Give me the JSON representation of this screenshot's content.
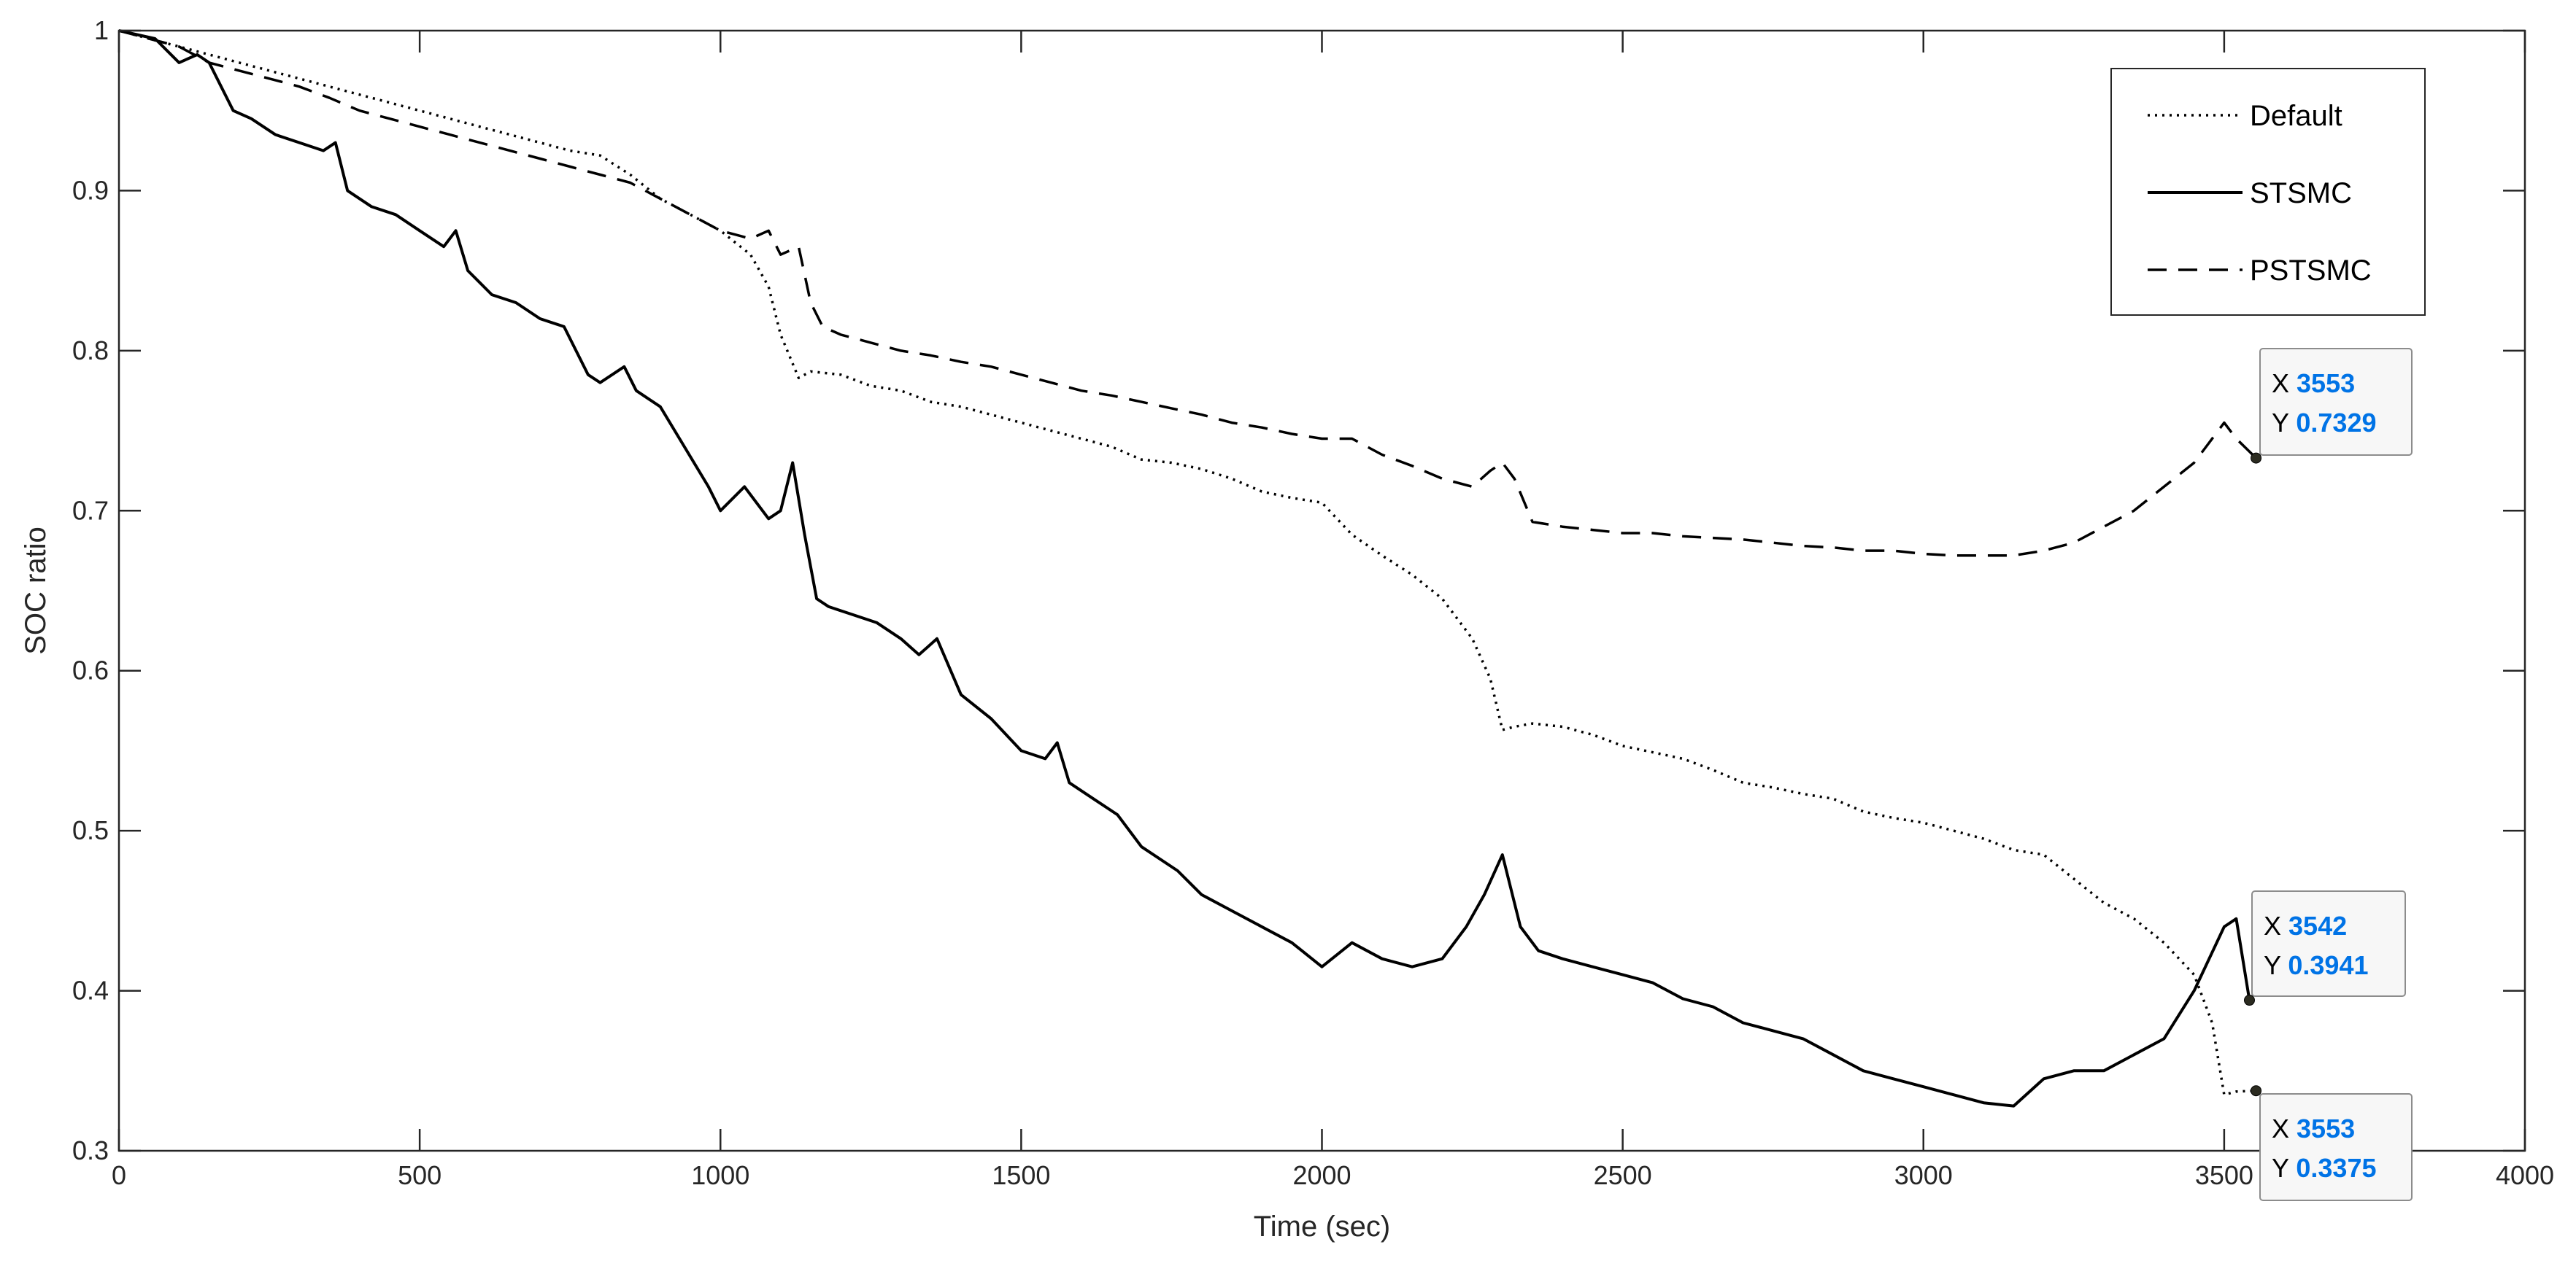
{
  "chart_data": {
    "type": "line",
    "title": "",
    "xlabel": "Time (sec)",
    "ylabel": "SOC ratio",
    "xlim": [
      0,
      4000
    ],
    "ylim": [
      0.3,
      1
    ],
    "xticks": [
      0,
      500,
      1000,
      1500,
      2000,
      2500,
      3000,
      3500,
      4000
    ],
    "yticks": [
      0.3,
      0.4,
      0.5,
      0.6,
      0.7,
      0.8,
      0.9,
      1
    ],
    "xtick_labels": [
      "0",
      "500",
      "1000",
      "1500",
      "2000",
      "2500",
      "3000",
      "3500",
      "4000"
    ],
    "ytick_labels": [
      "0.3",
      "0.4",
      "0.5",
      "0.6",
      "0.7",
      "0.8",
      "0.9",
      "1"
    ],
    "grid": false,
    "legend_position": "top-right",
    "series": [
      {
        "name": "Default",
        "style": "dotted",
        "color": "#000000",
        "x": [
          0,
          50,
          100,
          150,
          200,
          250,
          300,
          350,
          400,
          450,
          500,
          550,
          600,
          650,
          700,
          750,
          800,
          850,
          900,
          950,
          1000,
          1050,
          1080,
          1100,
          1130,
          1150,
          1200,
          1250,
          1300,
          1350,
          1400,
          1450,
          1500,
          1550,
          1600,
          1650,
          1700,
          1750,
          1800,
          1850,
          1900,
          1950,
          2000,
          2050,
          2100,
          2150,
          2200,
          2250,
          2280,
          2300,
          2320,
          2350,
          2400,
          2450,
          2500,
          2550,
          2600,
          2650,
          2700,
          2750,
          2800,
          2850,
          2900,
          2950,
          3000,
          3050,
          3100,
          3150,
          3200,
          3250,
          3300,
          3350,
          3400,
          3450,
          3480,
          3500,
          3520,
          3553
        ],
        "y": [
          1.0,
          0.995,
          0.99,
          0.985,
          0.98,
          0.975,
          0.97,
          0.965,
          0.96,
          0.955,
          0.95,
          0.945,
          0.94,
          0.935,
          0.93,
          0.925,
          0.922,
          0.91,
          0.895,
          0.885,
          0.875,
          0.86,
          0.84,
          0.81,
          0.783,
          0.787,
          0.785,
          0.778,
          0.775,
          0.768,
          0.765,
          0.76,
          0.755,
          0.75,
          0.745,
          0.74,
          0.732,
          0.73,
          0.726,
          0.72,
          0.712,
          0.708,
          0.705,
          0.685,
          0.672,
          0.66,
          0.645,
          0.62,
          0.595,
          0.563,
          0.565,
          0.567,
          0.565,
          0.56,
          0.553,
          0.549,
          0.545,
          0.538,
          0.53,
          0.527,
          0.523,
          0.52,
          0.512,
          0.508,
          0.505,
          0.5,
          0.495,
          0.488,
          0.485,
          0.47,
          0.455,
          0.445,
          0.43,
          0.41,
          0.38,
          0.335,
          0.337,
          0.3375
        ]
      },
      {
        "name": "STSMC",
        "style": "solid",
        "color": "#000000",
        "x": [
          0,
          60,
          100,
          130,
          150,
          170,
          190,
          220,
          260,
          300,
          340,
          360,
          380,
          420,
          460,
          500,
          540,
          560,
          580,
          620,
          660,
          700,
          740,
          780,
          800,
          840,
          860,
          900,
          940,
          980,
          1000,
          1040,
          1080,
          1100,
          1120,
          1140,
          1160,
          1180,
          1220,
          1260,
          1300,
          1330,
          1360,
          1400,
          1450,
          1500,
          1540,
          1560,
          1580,
          1620,
          1660,
          1700,
          1760,
          1800,
          1850,
          1900,
          1950,
          2000,
          2050,
          2100,
          2150,
          2200,
          2240,
          2270,
          2300,
          2330,
          2360,
          2400,
          2450,
          2500,
          2550,
          2600,
          2650,
          2700,
          2750,
          2800,
          2850,
          2900,
          2950,
          3000,
          3050,
          3100,
          3150,
          3200,
          3250,
          3300,
          3350,
          3400,
          3450,
          3500,
          3520,
          3542
        ],
        "y": [
          1.0,
          0.995,
          0.98,
          0.985,
          0.98,
          0.965,
          0.95,
          0.945,
          0.935,
          0.93,
          0.925,
          0.93,
          0.9,
          0.89,
          0.885,
          0.875,
          0.865,
          0.875,
          0.85,
          0.835,
          0.83,
          0.82,
          0.815,
          0.785,
          0.78,
          0.79,
          0.775,
          0.765,
          0.74,
          0.715,
          0.7,
          0.715,
          0.695,
          0.7,
          0.73,
          0.685,
          0.645,
          0.64,
          0.635,
          0.63,
          0.62,
          0.61,
          0.62,
          0.585,
          0.57,
          0.55,
          0.545,
          0.555,
          0.53,
          0.52,
          0.51,
          0.49,
          0.475,
          0.46,
          0.45,
          0.44,
          0.43,
          0.415,
          0.43,
          0.42,
          0.415,
          0.42,
          0.44,
          0.46,
          0.485,
          0.44,
          0.425,
          0.42,
          0.415,
          0.41,
          0.405,
          0.395,
          0.39,
          0.38,
          0.375,
          0.37,
          0.36,
          0.35,
          0.345,
          0.34,
          0.335,
          0.33,
          0.328,
          0.345,
          0.35,
          0.35,
          0.36,
          0.37,
          0.4,
          0.44,
          0.445,
          0.3941
        ]
      },
      {
        "name": "PSTSMC",
        "style": "dashed",
        "color": "#000000",
        "x": [
          0,
          50,
          100,
          150,
          200,
          250,
          300,
          350,
          400,
          450,
          500,
          550,
          600,
          650,
          700,
          750,
          800,
          850,
          900,
          950,
          1000,
          1050,
          1080,
          1100,
          1130,
          1150,
          1170,
          1200,
          1250,
          1300,
          1350,
          1400,
          1450,
          1500,
          1550,
          1600,
          1650,
          1700,
          1750,
          1800,
          1850,
          1900,
          1950,
          2000,
          2050,
          2100,
          2150,
          2200,
          2250,
          2280,
          2300,
          2320,
          2350,
          2400,
          2450,
          2500,
          2550,
          2600,
          2650,
          2700,
          2750,
          2800,
          2850,
          2900,
          2950,
          3000,
          3050,
          3100,
          3150,
          3200,
          3250,
          3300,
          3350,
          3400,
          3450,
          3500,
          3520,
          3553
        ],
        "y": [
          1.0,
          0.995,
          0.99,
          0.98,
          0.975,
          0.97,
          0.965,
          0.958,
          0.95,
          0.945,
          0.94,
          0.935,
          0.93,
          0.925,
          0.92,
          0.915,
          0.91,
          0.905,
          0.895,
          0.885,
          0.875,
          0.87,
          0.875,
          0.86,
          0.865,
          0.83,
          0.815,
          0.81,
          0.805,
          0.8,
          0.797,
          0.793,
          0.79,
          0.785,
          0.78,
          0.775,
          0.772,
          0.768,
          0.764,
          0.76,
          0.755,
          0.752,
          0.748,
          0.745,
          0.745,
          0.735,
          0.728,
          0.72,
          0.715,
          0.725,
          0.73,
          0.72,
          0.693,
          0.69,
          0.688,
          0.686,
          0.686,
          0.684,
          0.683,
          0.682,
          0.68,
          0.678,
          0.677,
          0.675,
          0.675,
          0.673,
          0.672,
          0.672,
          0.672,
          0.675,
          0.68,
          0.69,
          0.7,
          0.715,
          0.73,
          0.755,
          0.745,
          0.7329
        ]
      }
    ],
    "datatips": [
      {
        "x_label": "X",
        "y_label": "Y",
        "x": "3553",
        "y": "0.7329",
        "point": [
          3553,
          0.7329
        ]
      },
      {
        "x_label": "X",
        "y_label": "Y",
        "x": "3542",
        "y": "0.3941",
        "point": [
          3542,
          0.3941
        ]
      },
      {
        "x_label": "X",
        "y_label": "Y",
        "x": "3553",
        "y": "0.3375",
        "point": [
          3553,
          0.3375
        ]
      }
    ]
  }
}
